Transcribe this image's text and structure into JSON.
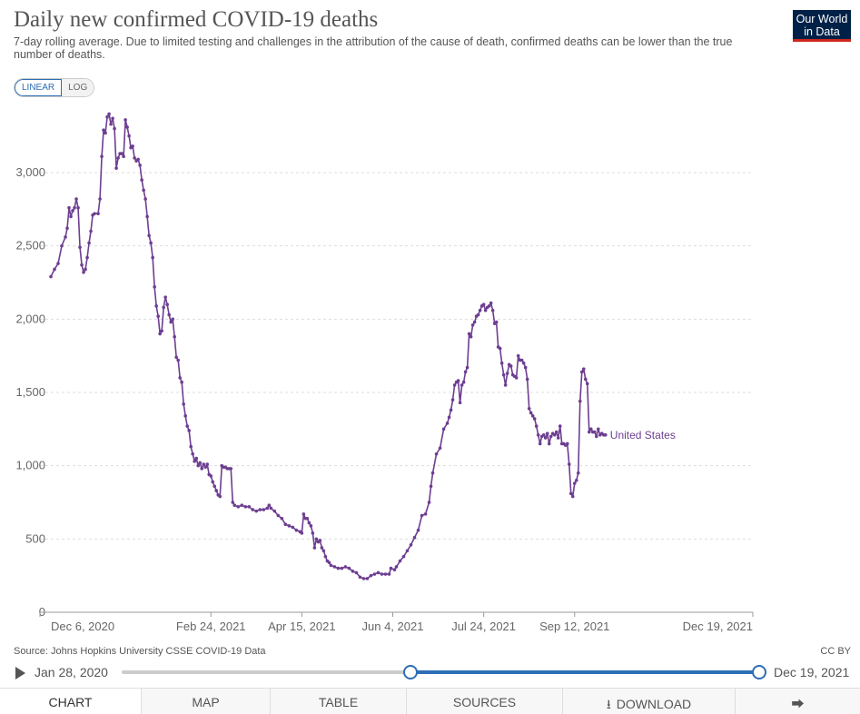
{
  "header": {
    "title": "Daily new confirmed COVID-19 deaths",
    "subtitle": "7-day rolling average. Due to limited testing and challenges in the attribution of the cause of death, confirmed deaths can be lower than the true number of deaths.",
    "logo_line1": "Our World",
    "logo_line2": "in Data"
  },
  "controls": {
    "linear_label": "LINEAR",
    "log_label": "LOG"
  },
  "chart_data": {
    "type": "line",
    "title": "Daily new confirmed COVID-19 deaths",
    "xlabel": "",
    "ylabel": "",
    "ylim": [
      0,
      3500
    ],
    "yticks": [
      0,
      500,
      1000,
      1500,
      2000,
      2500,
      3000
    ],
    "ytick_labels": [
      "0",
      "500",
      "1,000",
      "1,500",
      "2,000",
      "2,500",
      "3,000"
    ],
    "x_start": "2020-11-28",
    "x_end": "2021-12-19",
    "xticks": [
      {
        "label": "Dec 6, 2020",
        "day": 8
      },
      {
        "label": "Feb 24, 2021",
        "day": 88
      },
      {
        "label": "Apr 15, 2021",
        "day": 138
      },
      {
        "label": "Jun 4, 2021",
        "day": 188
      },
      {
        "label": "Jul 24, 2021",
        "day": 238
      },
      {
        "label": "Sep 12, 2021",
        "day": 288
      },
      {
        "label": "Dec 19, 2021",
        "day": 386
      }
    ],
    "series": [
      {
        "name": "United States",
        "color": "#6d3e91",
        "points": [
          [
            0,
            2290
          ],
          [
            2,
            2340
          ],
          [
            4,
            2380
          ],
          [
            6,
            2500
          ],
          [
            8,
            2560
          ],
          [
            9,
            2620
          ],
          [
            10,
            2760
          ],
          [
            11,
            2700
          ],
          [
            12,
            2740
          ],
          [
            13,
            2760
          ],
          [
            14,
            2820
          ],
          [
            15,
            2760
          ],
          [
            16,
            2490
          ],
          [
            17,
            2370
          ],
          [
            18,
            2320
          ],
          [
            19,
            2340
          ],
          [
            20,
            2420
          ],
          [
            21,
            2520
          ],
          [
            22,
            2600
          ],
          [
            23,
            2710
          ],
          [
            24,
            2720
          ],
          [
            26,
            2720
          ],
          [
            27,
            2820
          ],
          [
            28,
            3110
          ],
          [
            29,
            3290
          ],
          [
            30,
            3270
          ],
          [
            31,
            3380
          ],
          [
            32,
            3400
          ],
          [
            33,
            3330
          ],
          [
            34,
            3370
          ],
          [
            35,
            3300
          ],
          [
            36,
            3030
          ],
          [
            37,
            3100
          ],
          [
            38,
            3130
          ],
          [
            39,
            3130
          ],
          [
            40,
            3110
          ],
          [
            41,
            3360
          ],
          [
            42,
            3310
          ],
          [
            43,
            3250
          ],
          [
            44,
            3170
          ],
          [
            45,
            3180
          ],
          [
            46,
            3100
          ],
          [
            47,
            3080
          ],
          [
            48,
            3090
          ],
          [
            49,
            3050
          ],
          [
            50,
            2950
          ],
          [
            51,
            2880
          ],
          [
            52,
            2820
          ],
          [
            53,
            2700
          ],
          [
            54,
            2570
          ],
          [
            55,
            2520
          ],
          [
            56,
            2420
          ],
          [
            57,
            2220
          ],
          [
            58,
            2090
          ],
          [
            59,
            2020
          ],
          [
            60,
            1900
          ],
          [
            61,
            1920
          ],
          [
            62,
            2080
          ],
          [
            63,
            2150
          ],
          [
            64,
            2100
          ],
          [
            65,
            2030
          ],
          [
            66,
            1980
          ],
          [
            67,
            2000
          ],
          [
            68,
            1880
          ],
          [
            69,
            1740
          ],
          [
            70,
            1720
          ],
          [
            71,
            1600
          ],
          [
            72,
            1570
          ],
          [
            73,
            1420
          ],
          [
            74,
            1340
          ],
          [
            75,
            1270
          ],
          [
            76,
            1240
          ],
          [
            77,
            1130
          ],
          [
            78,
            1080
          ],
          [
            79,
            1030
          ],
          [
            80,
            1050
          ],
          [
            81,
            1000
          ],
          [
            82,
            1020
          ],
          [
            83,
            980
          ],
          [
            84,
            1010
          ],
          [
            85,
            990
          ],
          [
            86,
            1010
          ],
          [
            87,
            940
          ],
          [
            88,
            930
          ],
          [
            89,
            890
          ],
          [
            90,
            860
          ],
          [
            91,
            830
          ],
          [
            92,
            800
          ],
          [
            93,
            790
          ],
          [
            94,
            1000
          ],
          [
            95,
            990
          ],
          [
            96,
            990
          ],
          [
            97,
            980
          ],
          [
            98,
            980
          ],
          [
            99,
            980
          ],
          [
            100,
            750
          ],
          [
            101,
            730
          ],
          [
            103,
            720
          ],
          [
            105,
            730
          ],
          [
            107,
            720
          ],
          [
            109,
            720
          ],
          [
            111,
            700
          ],
          [
            113,
            690
          ],
          [
            115,
            700
          ],
          [
            117,
            700
          ],
          [
            119,
            710
          ],
          [
            120,
            730
          ],
          [
            121,
            710
          ],
          [
            123,
            690
          ],
          [
            125,
            660
          ],
          [
            127,
            640
          ],
          [
            129,
            600
          ],
          [
            131,
            590
          ],
          [
            133,
            580
          ],
          [
            135,
            560
          ],
          [
            137,
            550
          ],
          [
            138,
            540
          ],
          [
            139,
            670
          ],
          [
            140,
            640
          ],
          [
            141,
            640
          ],
          [
            142,
            610
          ],
          [
            143,
            590
          ],
          [
            144,
            540
          ],
          [
            145,
            440
          ],
          [
            146,
            500
          ],
          [
            147,
            480
          ],
          [
            148,
            490
          ],
          [
            149,
            440
          ],
          [
            150,
            420
          ],
          [
            151,
            380
          ],
          [
            152,
            350
          ],
          [
            153,
            340
          ],
          [
            154,
            320
          ],
          [
            156,
            310
          ],
          [
            158,
            300
          ],
          [
            160,
            300
          ],
          [
            162,
            310
          ],
          [
            164,
            300
          ],
          [
            166,
            280
          ],
          [
            168,
            270
          ],
          [
            170,
            240
          ],
          [
            172,
            230
          ],
          [
            174,
            230
          ],
          [
            176,
            250
          ],
          [
            178,
            260
          ],
          [
            180,
            270
          ],
          [
            182,
            260
          ],
          [
            184,
            260
          ],
          [
            186,
            260
          ],
          [
            187,
            300
          ],
          [
            189,
            290
          ],
          [
            190,
            310
          ],
          [
            192,
            350
          ],
          [
            194,
            380
          ],
          [
            196,
            420
          ],
          [
            198,
            460
          ],
          [
            200,
            510
          ],
          [
            202,
            560
          ],
          [
            204,
            660
          ],
          [
            206,
            670
          ],
          [
            208,
            750
          ],
          [
            209,
            860
          ],
          [
            210,
            950
          ],
          [
            212,
            1080
          ],
          [
            214,
            1120
          ],
          [
            216,
            1250
          ],
          [
            218,
            1290
          ],
          [
            219,
            1330
          ],
          [
            220,
            1380
          ],
          [
            221,
            1450
          ],
          [
            222,
            1550
          ],
          [
            223,
            1570
          ],
          [
            224,
            1580
          ],
          [
            225,
            1430
          ],
          [
            226,
            1550
          ],
          [
            227,
            1570
          ],
          [
            228,
            1640
          ],
          [
            229,
            1670
          ],
          [
            230,
            1900
          ],
          [
            231,
            1880
          ],
          [
            232,
            1960
          ],
          [
            233,
            1980
          ],
          [
            234,
            2020
          ],
          [
            235,
            2030
          ],
          [
            236,
            2060
          ],
          [
            237,
            2090
          ],
          [
            238,
            2100
          ],
          [
            239,
            2060
          ],
          [
            240,
            2080
          ],
          [
            241,
            2090
          ],
          [
            242,
            2110
          ],
          [
            243,
            2060
          ],
          [
            244,
            1970
          ],
          [
            245,
            1980
          ],
          [
            246,
            1810
          ],
          [
            247,
            1800
          ],
          [
            248,
            1700
          ],
          [
            249,
            1620
          ],
          [
            250,
            1550
          ],
          [
            251,
            1630
          ],
          [
            252,
            1690
          ],
          [
            253,
            1680
          ],
          [
            254,
            1620
          ],
          [
            255,
            1610
          ],
          [
            256,
            1600
          ],
          [
            257,
            1750
          ],
          [
            258,
            1720
          ],
          [
            259,
            1720
          ],
          [
            260,
            1700
          ],
          [
            261,
            1670
          ],
          [
            262,
            1590
          ],
          [
            263,
            1390
          ],
          [
            264,
            1360
          ],
          [
            265,
            1340
          ],
          [
            266,
            1320
          ],
          [
            267,
            1270
          ],
          [
            268,
            1210
          ],
          [
            269,
            1150
          ],
          [
            270,
            1200
          ],
          [
            271,
            1210
          ],
          [
            272,
            1190
          ],
          [
            273,
            1220
          ],
          [
            274,
            1150
          ],
          [
            275,
            1200
          ],
          [
            276,
            1220
          ],
          [
            277,
            1210
          ],
          [
            278,
            1230
          ],
          [
            279,
            1190
          ],
          [
            280,
            1270
          ],
          [
            281,
            1150
          ],
          [
            282,
            1150
          ],
          [
            283,
            1140
          ],
          [
            284,
            1150
          ],
          [
            285,
            1010
          ],
          [
            286,
            810
          ],
          [
            287,
            790
          ],
          [
            288,
            880
          ],
          [
            289,
            900
          ],
          [
            290,
            950
          ],
          [
            291,
            1440
          ],
          [
            292,
            1640
          ],
          [
            293,
            1660
          ],
          [
            294,
            1590
          ],
          [
            295,
            1560
          ],
          [
            296,
            1230
          ],
          [
            297,
            1250
          ],
          [
            298,
            1230
          ],
          [
            299,
            1230
          ],
          [
            300,
            1200
          ],
          [
            301,
            1250
          ],
          [
            302,
            1210
          ],
          [
            303,
            1220
          ],
          [
            304,
            1210
          ],
          [
            305,
            1210
          ]
        ]
      }
    ]
  },
  "footer": {
    "source": "Source: Johns Hopkins University CSSE COVID-19 Data",
    "license": "CC BY"
  },
  "timeline": {
    "start_label": "Jan 28, 2020",
    "end_label": "Dec 19, 2021"
  },
  "tabs": {
    "chart": "CHART",
    "map": "MAP",
    "table": "TABLE",
    "sources": "SOURCES",
    "download": "DOWNLOAD"
  }
}
